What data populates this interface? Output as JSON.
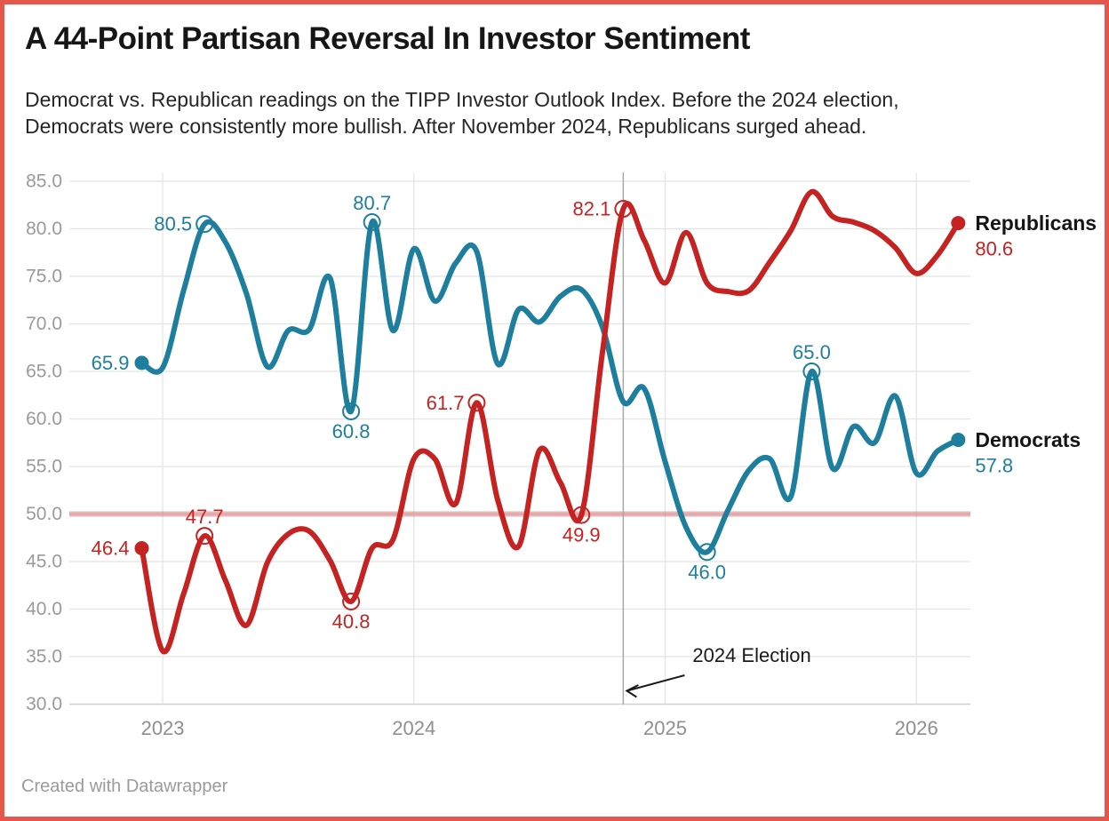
{
  "header": {
    "title": "A 44-Point Partisan Reversal In Investor Sentiment",
    "subtitle_line1": "Democrat vs. Republican readings on the TIPP Investor Outlook Index. Before the 2024 election,",
    "subtitle_line2": "Democrats were consistently more bullish. After November 2024, Republicans surged ahead."
  },
  "footer": {
    "credit": "Created with Datawrapper"
  },
  "theme": {
    "frame_border": "#e5564b",
    "grid": "#e4e4e4",
    "baseline_grid": "#cfcfcf",
    "event_line_color": "#a3a3a3",
    "reference_line_color": "rgba(201,58,58,0.38)",
    "axis_text": "#9a9a9a"
  },
  "chart_data": {
    "type": "line",
    "title": "A 44-Point Partisan Reversal In Investor Sentiment",
    "x": [
      "Dec 2022",
      "Jan 2023",
      "Feb 2023",
      "Mar 2023",
      "Apr 2023",
      "May 2023",
      "Jun 2023",
      "Jul 2023",
      "Aug 2023",
      "Sep 2023",
      "Oct 2023",
      "Nov 2023",
      "Dec 2023",
      "Jan 2024",
      "Feb 2024",
      "Mar 2024",
      "Apr 2024",
      "May 2024",
      "Jun 2024",
      "Jul 2024",
      "Aug 2024",
      "Sep 2024",
      "Oct 2024",
      "Nov 2024",
      "Dec 2024",
      "Jan 2025",
      "Feb 2025",
      "Mar 2025",
      "Apr 2025",
      "May 2025",
      "Jun 2025",
      "Jul 2025",
      "Aug 2025",
      "Sep 2025",
      "Oct 2025",
      "Nov 2025",
      "Dec 2025",
      "Jan 2026",
      "Feb 2026",
      "Mar 2026"
    ],
    "ylim": [
      30,
      85
    ],
    "grid": "on",
    "series": [
      {
        "id": "democrats",
        "name": "Democrats",
        "color": "#1d7e9e",
        "legend_value": "57.8",
        "values": [
          65.9,
          65.4,
          73.5,
          80.5,
          78.6,
          73.2,
          65.5,
          69.3,
          69.4,
          74.8,
          60.8,
          80.7,
          69.3,
          77.9,
          72.4,
          76.4,
          77.6,
          65.8,
          71.5,
          70.2,
          72.9,
          73.6,
          69.7,
          61.8,
          63.2,
          55.5,
          48.6,
          46.0,
          50.4,
          54.6,
          55.8,
          51.8,
          65.0,
          54.8,
          59.2,
          57.5,
          62.4,
          54.3,
          56.6,
          57.8
        ]
      },
      {
        "id": "republicans",
        "name": "Republicans",
        "color": "#c42322",
        "legend_value": "80.6",
        "values": [
          46.4,
          35.6,
          41.6,
          47.7,
          43.0,
          38.3,
          44.9,
          47.9,
          48.2,
          45.1,
          40.8,
          46.4,
          47.3,
          55.8,
          55.8,
          51.1,
          61.7,
          51.5,
          46.6,
          56.7,
          53.3,
          49.9,
          66.9,
          82.1,
          78.8,
          74.3,
          79.6,
          74.3,
          73.4,
          73.5,
          76.5,
          79.8,
          83.9,
          81.3,
          80.7,
          79.8,
          78.0,
          75.3,
          77.2,
          80.6
        ]
      }
    ],
    "y_axis": {
      "ticks": [
        {
          "value": 85,
          "label": "85.0"
        },
        {
          "value": 80,
          "label": "80.0"
        },
        {
          "value": 75,
          "label": "75.0"
        },
        {
          "value": 70,
          "label": "70.0"
        },
        {
          "value": 65,
          "label": "65.0"
        },
        {
          "value": 60,
          "label": "60.0"
        },
        {
          "value": 55,
          "label": "55.0"
        },
        {
          "value": 50,
          "label": "50.0"
        },
        {
          "value": 45,
          "label": "45.0"
        },
        {
          "value": 40,
          "label": "40.0"
        },
        {
          "value": 35,
          "label": "35.0"
        },
        {
          "value": 30,
          "label": "30.0"
        }
      ]
    },
    "x_axis": {
      "year_ticks": [
        {
          "label": "2023",
          "month_index": 1
        },
        {
          "label": "2024",
          "month_index": 13
        },
        {
          "label": "2025",
          "month_index": 25
        },
        {
          "label": "2026",
          "month_index": 37
        }
      ]
    },
    "reference_line": {
      "value": 50.0
    },
    "event_line": {
      "label": "2024 Election",
      "month_index": 23
    },
    "callouts": [
      {
        "series": "democrats",
        "month_index": 0,
        "label": "65.9",
        "placement": "left",
        "circle": false
      },
      {
        "series": "democrats",
        "month_index": 3,
        "label": "80.5",
        "placement": "left",
        "circle": true
      },
      {
        "series": "democrats",
        "month_index": 10,
        "label": "60.8",
        "placement": "below",
        "circle": true
      },
      {
        "series": "democrats",
        "month_index": 11,
        "label": "80.7",
        "placement": "above",
        "circle": true
      },
      {
        "series": "democrats",
        "month_index": 27,
        "label": "46.0",
        "placement": "below",
        "circle": true
      },
      {
        "series": "democrats",
        "month_index": 32,
        "label": "65.0",
        "placement": "above",
        "circle": true
      },
      {
        "series": "republicans",
        "month_index": 0,
        "label": "46.4",
        "placement": "left",
        "circle": false
      },
      {
        "series": "republicans",
        "month_index": 3,
        "label": "47.7",
        "placement": "above",
        "circle": true
      },
      {
        "series": "republicans",
        "month_index": 10,
        "label": "40.8",
        "placement": "below",
        "circle": true
      },
      {
        "series": "republicans",
        "month_index": 16,
        "label": "61.7",
        "placement": "left",
        "circle": true
      },
      {
        "series": "republicans",
        "month_index": 21,
        "label": "49.9",
        "placement": "below",
        "circle": true
      },
      {
        "series": "republicans",
        "month_index": 23,
        "label": "82.1",
        "placement": "left",
        "circle": true
      }
    ]
  }
}
